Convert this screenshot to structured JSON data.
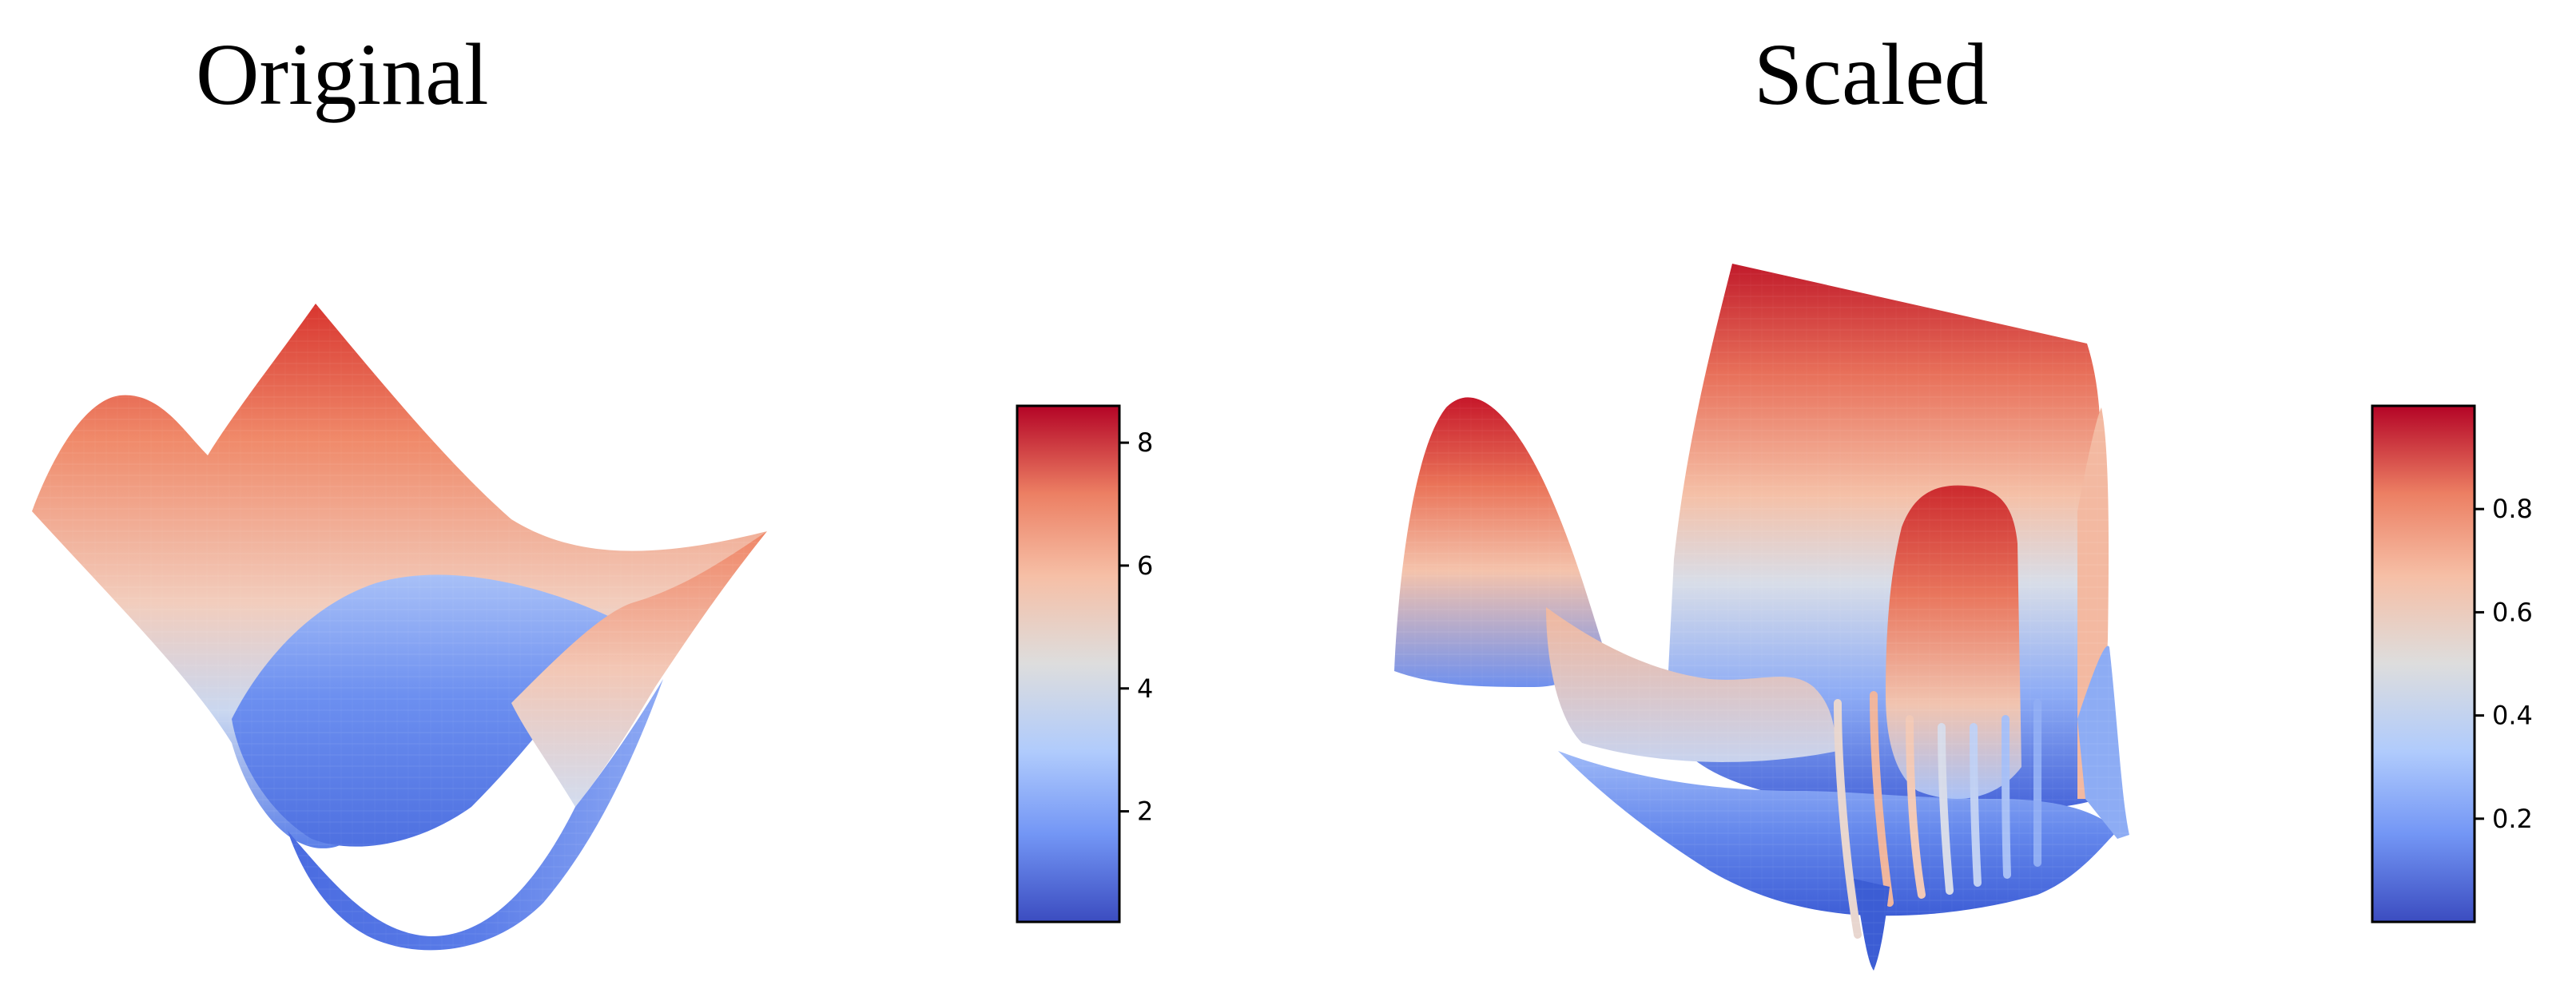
{
  "panels": {
    "left": {
      "title": "Original"
    },
    "right": {
      "title": "Scaled"
    }
  },
  "colormap": {
    "name": "coolwarm",
    "stops": [
      "#3b4cc0",
      "#7396f5",
      "#b0cbfc",
      "#dddddd",
      "#f6bfa6",
      "#ec7f63",
      "#b40426"
    ]
  },
  "chart_data": [
    {
      "type": "surface",
      "title": "Original",
      "colorbar": {
        "range": [
          0.2,
          8.6
        ],
        "ticks": [
          2,
          4,
          6,
          8
        ],
        "tick_labels": [
          "2",
          "4",
          "6",
          "8"
        ]
      },
      "surface_description": "3D surface with a bowl-shaped minimum; values range approximately 0.2 to 8.6"
    },
    {
      "type": "surface",
      "title": "Scaled",
      "colorbar": {
        "range": [
          0.0,
          1.0
        ],
        "ticks": [
          0.2,
          0.4,
          0.6,
          0.8
        ],
        "tick_labels": [
          "0.2",
          "0.4",
          "0.6",
          "0.8"
        ]
      },
      "surface_description": "3D surface scaled to 0-1 with oscillating ridges; values range approximately 0.0 to 1.0"
    }
  ]
}
